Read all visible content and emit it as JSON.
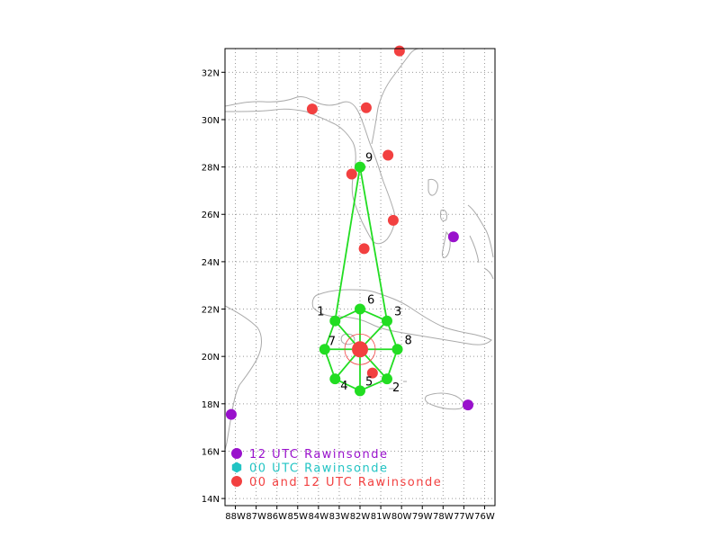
{
  "colors": {
    "rawinsonde_12": "#9911cc",
    "rawinsonde_00": "#22c4c4",
    "rawinsonde_00_12": "#f24040",
    "grid_points": "#22dd22",
    "coastline": "#aaaaaa",
    "center_marker": "#f24040"
  },
  "axes": {
    "lon_range": [
      -88.5,
      -75.5
    ],
    "lat_range": [
      13.7,
      33
    ],
    "x_ticks": [
      "88W",
      "87W",
      "86W",
      "85W",
      "84W",
      "83W",
      "82W",
      "81W",
      "80W",
      "79W",
      "78W",
      "77W",
      "76W"
    ],
    "y_ticks": [
      "14N",
      "16N",
      "18N",
      "20N",
      "22N",
      "24N",
      "26N",
      "28N",
      "30N",
      "32N"
    ]
  },
  "legend": [
    {
      "label": "12 UTC Rawinsonde",
      "marker": "circle",
      "color_key": "rawinsonde_12"
    },
    {
      "label": "00 UTC Rawinsonde",
      "marker": "hexagon",
      "color_key": "rawinsonde_00"
    },
    {
      "label": "00 and 12 UTC Rawinsonde",
      "marker": "circle",
      "color_key": "rawinsonde_00_12"
    }
  ],
  "storm_center": {
    "lon": -82.0,
    "lat": 20.3
  },
  "grid_points": [
    {
      "id": "1",
      "lon": -83.2,
      "lat": 21.5
    },
    {
      "id": "2",
      "lon": -80.7,
      "lat": 19.05
    },
    {
      "id": "3",
      "lon": -80.7,
      "lat": 21.5
    },
    {
      "id": "4",
      "lon": -83.2,
      "lat": 19.05
    },
    {
      "id": "5",
      "lon": -82.0,
      "lat": 18.55
    },
    {
      "id": "6",
      "lon": -82.0,
      "lat": 22.0
    },
    {
      "id": "7",
      "lon": -83.7,
      "lat": 20.3
    },
    {
      "id": "8",
      "lon": -80.2,
      "lat": 20.3
    },
    {
      "id": "9",
      "lon": -82.0,
      "lat": 28.0
    }
  ],
  "rawinsondes_12": [
    {
      "lon": -88.2,
      "lat": 17.55
    },
    {
      "lon": -77.5,
      "lat": 25.05
    },
    {
      "lon": -76.8,
      "lat": 17.95
    }
  ],
  "rawinsondes_00_12": [
    {
      "lon": -80.1,
      "lat": 32.9
    },
    {
      "lon": -84.3,
      "lat": 30.45
    },
    {
      "lon": -81.7,
      "lat": 30.5
    },
    {
      "lon": -82.4,
      "lat": 27.7
    },
    {
      "lon": -80.65,
      "lat": 28.5
    },
    {
      "lon": -80.4,
      "lat": 25.75
    },
    {
      "lon": -81.8,
      "lat": 24.55
    },
    {
      "lon": -81.4,
      "lat": 19.3
    }
  ]
}
